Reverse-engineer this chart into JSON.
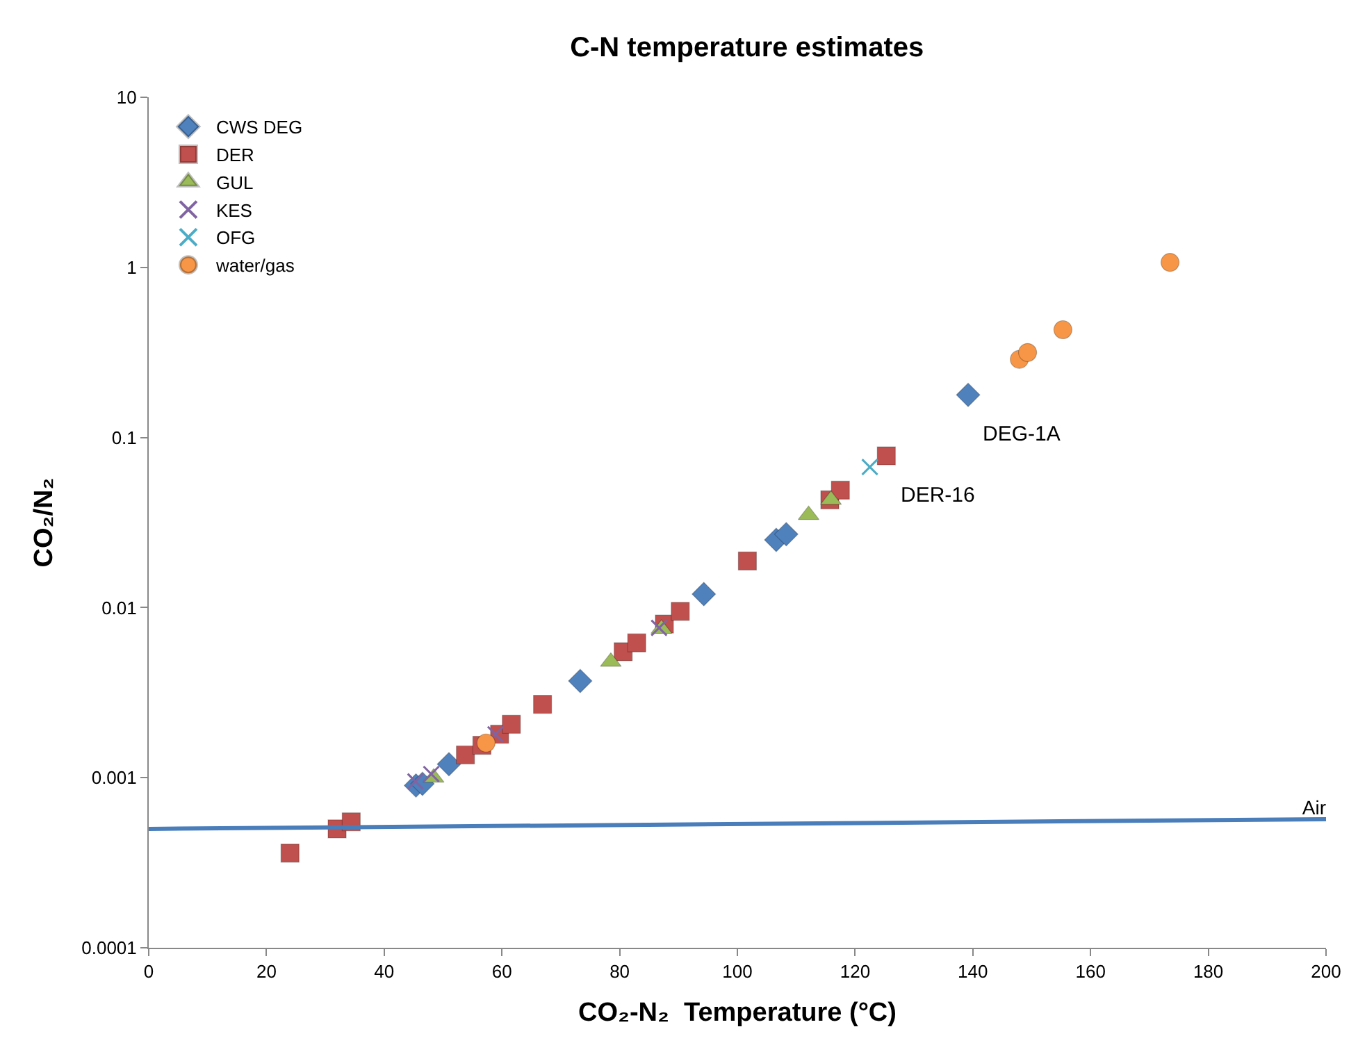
{
  "chart_data": {
    "type": "scatter",
    "title": "C-N temperature estimates",
    "xlabel": "CO₂-N₂  Temperature (°C)",
    "ylabel": "CO₂/N₂",
    "xlim": [
      0,
      200
    ],
    "xticks": [
      0,
      20,
      40,
      60,
      80,
      100,
      120,
      140,
      160,
      180,
      200
    ],
    "ylim": [
      0.0001,
      10
    ],
    "yticks": [
      0.0001,
      0.001,
      0.01,
      0.1,
      1,
      10
    ],
    "log": "y",
    "legend": "top left",
    "series": [
      {
        "name": "CWS DEG",
        "color": "#4f81bd",
        "marker": "diamond",
        "x": [
          45.4,
          46.5,
          51,
          73.3,
          94.3,
          106.6,
          108.3,
          139.2
        ],
        "values": [
          0.0009,
          0.00092,
          0.0012,
          0.0037,
          0.012,
          0.025,
          0.027,
          0.178
        ]
      },
      {
        "name": "DER",
        "color": "#c0504d",
        "marker": "square",
        "x": [
          24,
          32,
          34.4,
          53.8,
          56.6,
          59.6,
          61.6,
          66.9,
          80.6,
          82.9,
          87.6,
          90.3,
          101.7,
          115.7,
          117.5,
          125.3
        ],
        "values": [
          0.00036,
          0.0005,
          0.00055,
          0.00136,
          0.00155,
          0.0018,
          0.00206,
          0.0027,
          0.0055,
          0.0062,
          0.008,
          0.0095,
          0.0188,
          0.043,
          0.049,
          0.078
        ]
      },
      {
        "name": "GUL",
        "color": "#9bbb59",
        "marker": "triangle",
        "x": [
          48.4,
          78.5,
          87.1,
          112.1,
          115.9
        ],
        "values": [
          0.001,
          0.0048,
          0.0075,
          0.035,
          0.043
        ]
      },
      {
        "name": "KES",
        "color": "#8064a2",
        "marker": "cross",
        "x": [
          45.3,
          48,
          58.9,
          86.7
        ],
        "values": [
          0.00095,
          0.00105,
          0.0018,
          0.0076
        ]
      },
      {
        "name": "OFG",
        "color": "#4bacc6",
        "marker": "cross",
        "x": [
          122.5
        ],
        "values": [
          0.067
        ]
      },
      {
        "name": "water/gas",
        "color": "#f79646",
        "marker": "circle",
        "x": [
          57.3,
          147.9,
          149.3,
          155.3,
          173.5
        ],
        "values": [
          0.0016,
          0.288,
          0.316,
          0.43,
          1.07
        ]
      },
      {
        "name": "Air",
        "type": "line",
        "color": "#4a7ebb",
        "marker": "none",
        "line_style": "solid",
        "x": [
          0,
          200
        ],
        "values": [
          0.0005,
          0.00057
        ]
      }
    ],
    "annotations": [
      {
        "text": "DEG-1A",
        "x": 139.2,
        "y": 0.178
      },
      {
        "text": "DER-16",
        "x": 125.3,
        "y": 0.078
      }
    ]
  }
}
